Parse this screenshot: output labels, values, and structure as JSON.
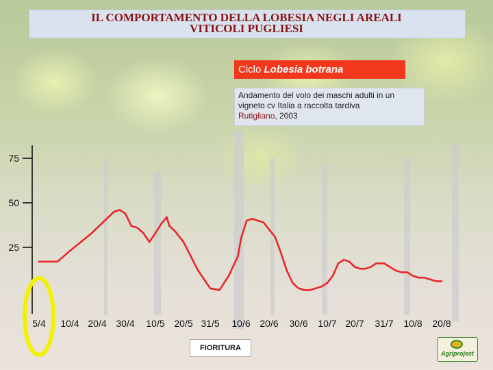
{
  "header": {
    "title_line1": "IL COMPORTAMENTO DELLA LOBESIA NEGLI AREALI",
    "title_line2": "VITICOLI PUGLIESI"
  },
  "cycle_box": {
    "prefix": "Ciclo ",
    "species": "Lobesia botrana"
  },
  "note_box": {
    "line1": "Andamento del volo dei maschi adulti in un",
    "line2": "vigneto cv Italia a raccolta tardiva",
    "line3_place": "Rutigliano",
    "line3_rest": ", 2003"
  },
  "fioritura_label": "FIORITURA",
  "logo_text": "Agriproject",
  "colors": {
    "series": "#e8262a",
    "highlight_ring": "#f2f200",
    "title": "#8a1010",
    "cycle_box": "#f2371c"
  },
  "chart_data": {
    "type": "line",
    "categories": [
      "5/4",
      "10/4",
      "20/4",
      "30/4",
      "10/5",
      "20/5",
      "31/5",
      "10/6",
      "20/6",
      "30/6",
      "10/7",
      "20/7",
      "31/7",
      "10/8",
      "20/8"
    ],
    "yticks": [
      25,
      50,
      75
    ],
    "ylim": [
      0,
      80
    ],
    "grid": false,
    "annotations": [
      "FIORITURA"
    ],
    "series": [
      {
        "x": [
          "5/4",
          "8/4",
          "10/4",
          "14/4",
          "18/4",
          "22/4",
          "26/4",
          "28/4",
          "30/4",
          "2/5",
          "4/5",
          "6/5",
          "8/5",
          "10/5",
          "12/5",
          "14/5",
          "15/5",
          "17/5",
          "20/5",
          "23/5",
          "26/5",
          "29/5",
          "31/5",
          "3/6",
          "6/6",
          "9/6",
          "10/6",
          "12/6",
          "14/6",
          "16/6",
          "18/6",
          "20/6",
          "22/6",
          "24/6",
          "26/6",
          "28/6",
          "30/6",
          "2/7",
          "4/7",
          "6/7",
          "8/7",
          "10/7",
          "12/7",
          "14/7",
          "16/7",
          "18/7",
          "20/7",
          "22/7",
          "24/7",
          "26/7",
          "28/7",
          "31/7",
          "2/8",
          "4/8",
          "6/8",
          "8/8",
          "10/8",
          "12/8",
          "14/8",
          "16/8",
          "18/8",
          "20/8"
        ],
        "values": [
          17,
          17,
          23,
          28,
          33,
          39,
          45,
          46,
          44,
          37,
          36,
          33,
          28,
          33,
          38,
          42,
          37,
          34,
          28,
          20,
          12,
          6,
          2,
          1,
          9,
          20,
          30,
          40,
          41,
          40,
          39,
          35,
          31,
          22,
          12,
          5,
          2,
          1,
          1,
          2,
          3,
          5,
          9,
          16,
          18,
          17,
          14,
          13,
          13,
          14,
          16,
          16,
          14,
          12,
          11,
          11,
          9,
          8,
          8,
          7,
          6,
          6
        ]
      }
    ]
  }
}
